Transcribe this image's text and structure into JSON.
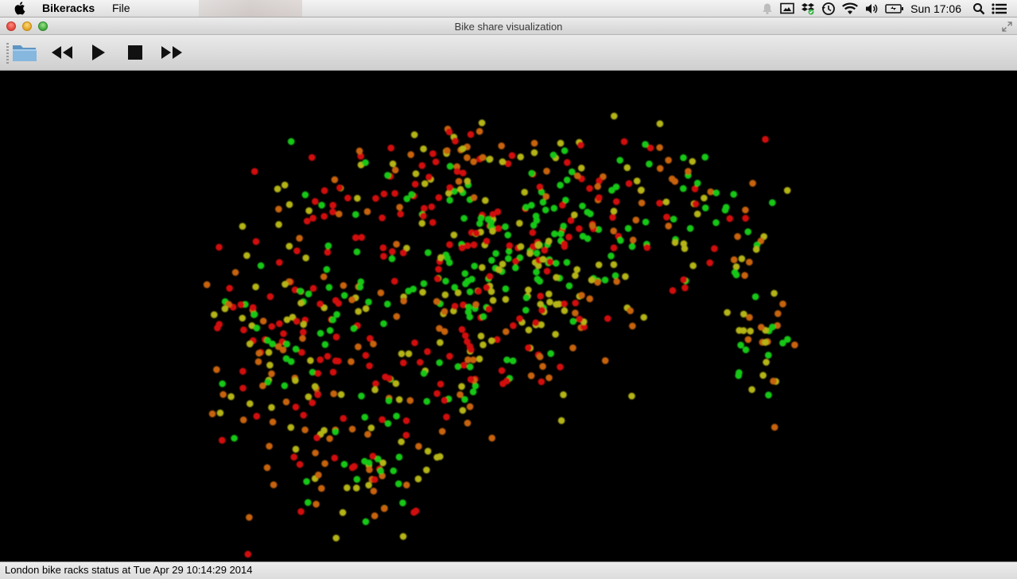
{
  "menubar": {
    "app_name": "Bikeracks",
    "menus": [
      "File"
    ],
    "status_icons": [
      "notification-icon",
      "display-icon",
      "dropbox-icon",
      "time-machine-icon",
      "wifi-icon",
      "volume-icon",
      "battery-icon"
    ],
    "clock": "Sun 17:06",
    "search_icon": "spotlight-icon",
    "list_icon": "notification-center-icon"
  },
  "window": {
    "title": "Bike share visualization"
  },
  "toolbar": {
    "buttons": [
      {
        "name": "open-folder-button",
        "icon": "folder-icon"
      },
      {
        "name": "rewind-button",
        "icon": "rewind-icon"
      },
      {
        "name": "play-button",
        "icon": "play-icon"
      },
      {
        "name": "stop-button",
        "icon": "stop-icon"
      },
      {
        "name": "fast-forward-button",
        "icon": "fast-forward-icon"
      }
    ]
  },
  "colors": {
    "red": "#d20f0a",
    "orange": "#c8640a",
    "yellow": "#b4b414",
    "green": "#14c814"
  },
  "status": {
    "text": "London bike racks status at Tue Apr 29 10:14:29 2014"
  }
}
